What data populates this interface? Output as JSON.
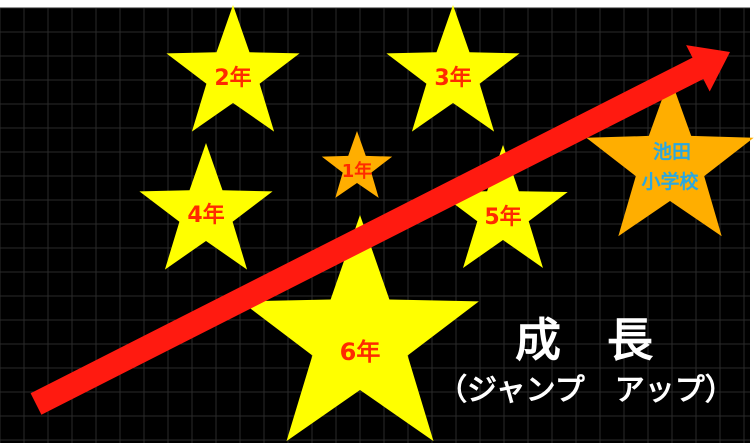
{
  "colors": {
    "background": "#000000",
    "grid": "#2a2a2a",
    "star_yellow": "#ffff00",
    "star_orange": "#ffae00",
    "grade_text": "#ff2a00",
    "school_text": "#2aa8e0",
    "arrow": "#ff1a10",
    "heading_text": "#ffffff"
  },
  "stars": [
    {
      "label": "2年",
      "color": "yellow"
    },
    {
      "label": "3年",
      "color": "yellow"
    },
    {
      "label": "1年",
      "color": "orange"
    },
    {
      "label": "4年",
      "color": "yellow"
    },
    {
      "label": "5年",
      "color": "yellow"
    },
    {
      "label": "6年",
      "color": "yellow"
    }
  ],
  "school_star": {
    "line1": "池田",
    "line2": "小学校",
    "color": "orange"
  },
  "heading": {
    "title": "成　長",
    "subtitle": "（ジャンプ　アップ）"
  },
  "icons": {
    "arrow": "rising-arrow-icon",
    "star": "star-icon"
  }
}
